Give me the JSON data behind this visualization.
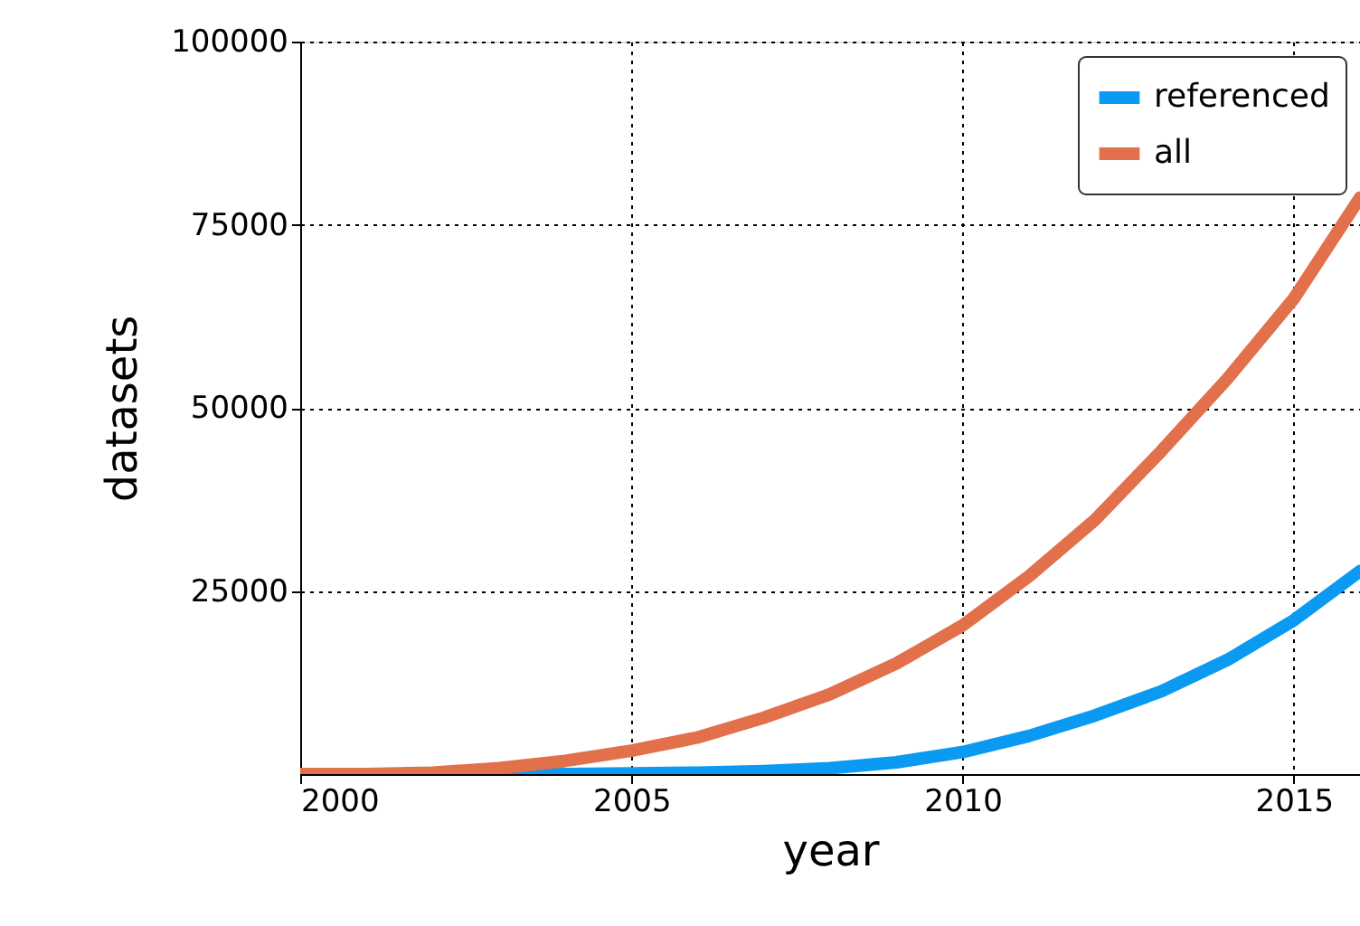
{
  "chart_data": {
    "type": "line",
    "xlabel": "year",
    "ylabel": "datasets",
    "x": [
      2000,
      2001,
      2002,
      2003,
      2004,
      2005,
      2006,
      2007,
      2008,
      2009,
      2010,
      2011,
      2012,
      2013,
      2014,
      2015,
      2016
    ],
    "series": [
      {
        "name": "referenced",
        "color": "#0a9af2",
        "values": [
          null,
          null,
          0,
          0,
          0,
          100,
          200,
          400,
          800,
          1600,
          3000,
          5200,
          8000,
          11300,
          15600,
          21000,
          27700
        ]
      },
      {
        "name": "all",
        "color": "#e2704b",
        "values": [
          0,
          0,
          200,
          800,
          1800,
          3200,
          5000,
          7700,
          10900,
          15100,
          20300,
          27000,
          34700,
          44100,
          54000,
          64900,
          78700
        ]
      }
    ],
    "xlim": [
      2000,
      2016
    ],
    "ylim": [
      0,
      100000
    ],
    "xticks": [
      2000,
      2005,
      2010,
      2015
    ],
    "yticks": [
      25000,
      50000,
      75000,
      100000
    ],
    "grid": true,
    "legend": "top right",
    "marker": "none",
    "line_style": "solid"
  }
}
